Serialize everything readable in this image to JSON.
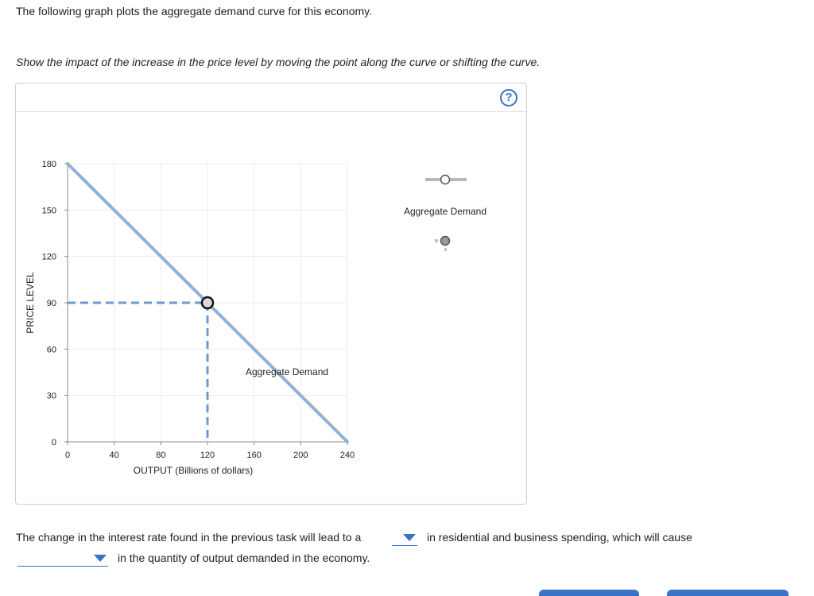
{
  "intro_text": "The following graph plots the aggregate demand curve for this economy.",
  "instruction_text": "Show the impact of the increase in the price level by moving the point along the curve or shifting the curve.",
  "help_label": "?",
  "palette": {
    "legend_label": "Aggregate Demand"
  },
  "question": {
    "part1": "The change in the interest rate found in the previous task will lead to a",
    "part2": "in residential and business spending, which will cause",
    "part3": "in the quantity of output demanded in the economy.",
    "dropdown1_value": "",
    "dropdown2_value": ""
  },
  "colors": {
    "curve": "#8eb2d6",
    "guide": "#6d9bd1",
    "accent": "#3a72c7",
    "grid": "#ececec"
  },
  "chart_data": {
    "type": "line",
    "xlabel": "OUTPUT (Billions of dollars)",
    "ylabel": "PRICE LEVEL",
    "xlim": [
      0,
      240
    ],
    "ylim": [
      0,
      180
    ],
    "x_ticks": [
      0,
      40,
      80,
      120,
      160,
      200,
      240
    ],
    "y_ticks": [
      0,
      30,
      60,
      90,
      120,
      150,
      180
    ],
    "grid": true,
    "series": [
      {
        "name": "Aggregate Demand",
        "x": [
          0,
          240
        ],
        "y": [
          180,
          0
        ]
      }
    ],
    "curve_label": "Aggregate Demand",
    "point": {
      "x": 120,
      "y": 90
    }
  }
}
